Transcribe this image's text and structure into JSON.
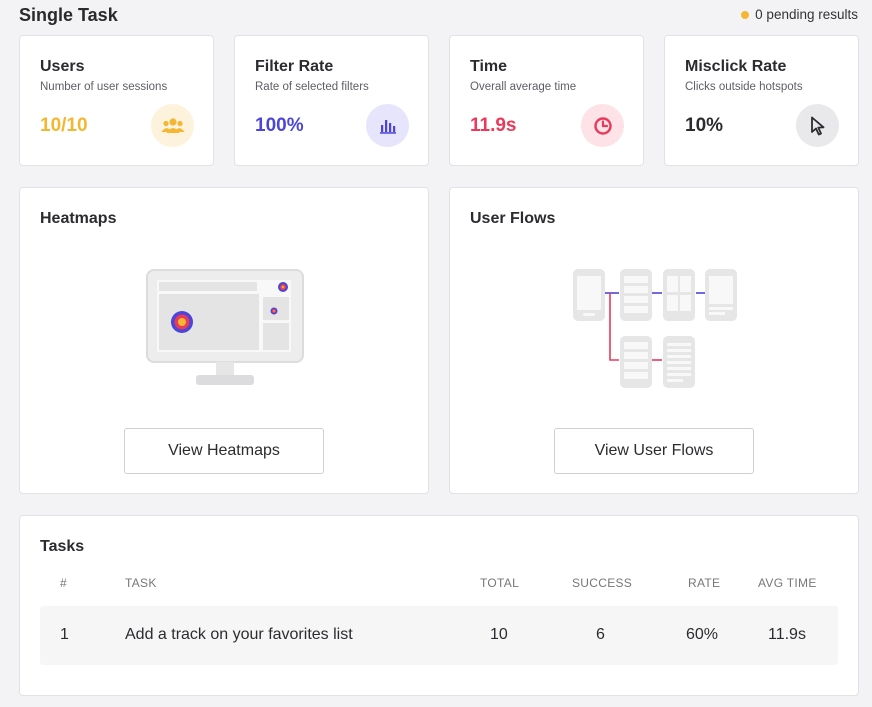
{
  "header": {
    "title": "Single Task",
    "pending_text": "0 pending results",
    "pending_color": "#f5b731"
  },
  "stats": [
    {
      "title": "Users",
      "subtitle": "Number of user sessions",
      "value": "10/10",
      "color": "#f5b731",
      "icon": "users-icon"
    },
    {
      "title": "Filter Rate",
      "subtitle": "Rate of selected filters",
      "value": "100%",
      "color": "#4c45d8",
      "icon": "bar-chart-icon"
    },
    {
      "title": "Time",
      "subtitle": "Overall average time",
      "value": "11.9s",
      "color": "#ea3a5a",
      "icon": "clock-icon"
    },
    {
      "title": "Misclick Rate",
      "subtitle": "Clicks outside hotspots",
      "value": "10%",
      "color": "#2c2c30",
      "icon": "cursor-icon"
    }
  ],
  "heatmaps": {
    "title": "Heatmaps",
    "button": "View Heatmaps",
    "illustration": "monitor-heatmap-illustration"
  },
  "user_flows": {
    "title": "User Flows",
    "button": "View User Flows",
    "illustration": "user-flow-illustration"
  },
  "tasks": {
    "title": "Tasks",
    "columns": [
      "#",
      "TASK",
      "TOTAL",
      "SUCCESS",
      "RATE",
      "AVG TIME"
    ],
    "rows": [
      {
        "index": "1",
        "task": "Add a track on your favorites list",
        "total": "10",
        "success": "6",
        "rate": "60%",
        "avg_time": "11.9s"
      }
    ]
  }
}
